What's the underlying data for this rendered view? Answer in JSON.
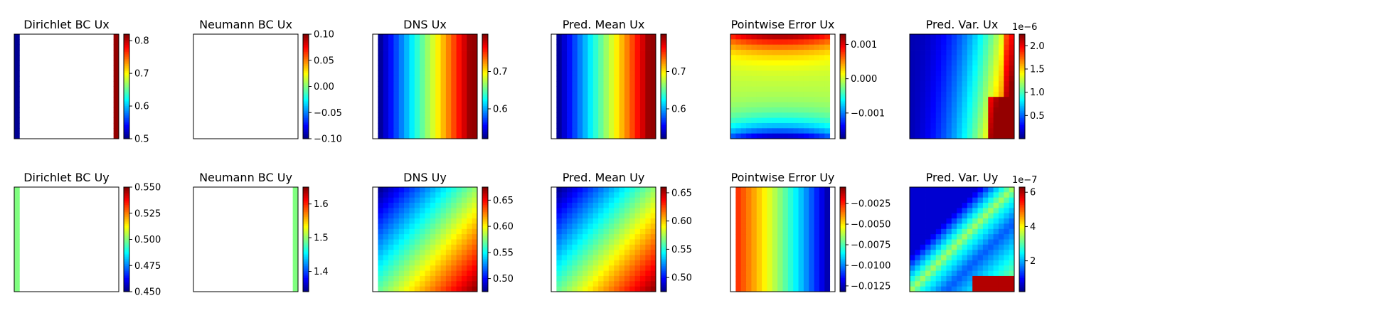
{
  "figure": {
    "rows": [
      [
        {
          "title": "Dirichlet BC Ux",
          "kind": "dirichlet_x",
          "ticks": [
            "0.5",
            "0.6",
            "0.7",
            "0.8"
          ],
          "tick_values": [
            0.5,
            0.6,
            0.7,
            0.8
          ],
          "cbar_range": [
            0.5,
            0.82
          ],
          "multiplier": ""
        },
        {
          "title": "Neumann BC Ux",
          "kind": "blank",
          "ticks": [
            "−0.10",
            "−0.05",
            "0.00",
            "0.05",
            "0.10"
          ],
          "tick_values": [
            -0.1,
            -0.05,
            0.0,
            0.05,
            0.1
          ],
          "cbar_range": [
            -0.1,
            0.1
          ],
          "multiplier": ""
        },
        {
          "title": "DNS Ux",
          "kind": "gradient_x",
          "ticks": [
            "0.6",
            "0.7"
          ],
          "tick_values": [
            0.6,
            0.7
          ],
          "cbar_range": [
            0.52,
            0.8
          ],
          "multiplier": ""
        },
        {
          "title": "Pred. Mean Ux",
          "kind": "gradient_x",
          "ticks": [
            "0.6",
            "0.7"
          ],
          "tick_values": [
            0.6,
            0.7
          ],
          "cbar_range": [
            0.52,
            0.8
          ],
          "multiplier": ""
        },
        {
          "title": "Pointwise Error Ux",
          "kind": "error_x",
          "ticks": [
            "0.001",
            "0.000",
            "−0.001"
          ],
          "tick_values": [
            0.001,
            0.0,
            -0.001
          ],
          "cbar_range": [
            -0.00175,
            0.0013
          ],
          "multiplier": ""
        },
        {
          "title": "Pred. Var. Ux",
          "kind": "variance_x",
          "ticks": [
            "0.5",
            "1.0",
            "1.5",
            "2.0"
          ],
          "tick_values": [
            0.5,
            1.0,
            1.5,
            2.0
          ],
          "cbar_range": [
            0.0,
            2.25
          ],
          "multiplier": "1e−6"
        }
      ],
      [
        {
          "title": "Dirichlet BC Uy",
          "kind": "dirichlet_y",
          "ticks": [
            "0.450",
            "0.475",
            "0.500",
            "0.525",
            "0.550"
          ],
          "tick_values": [
            0.45,
            0.475,
            0.5,
            0.525,
            0.55
          ],
          "cbar_range": [
            0.45,
            0.55
          ],
          "multiplier": ""
        },
        {
          "title": "Neumann BC Uy",
          "kind": "neumann_y",
          "ticks": [
            "1.4",
            "1.5",
            "1.6"
          ],
          "tick_values": [
            1.4,
            1.5,
            1.6
          ],
          "cbar_range": [
            1.34,
            1.65
          ],
          "multiplier": ""
        },
        {
          "title": "DNS Uy",
          "kind": "gradient_diag",
          "ticks": [
            "0.50",
            "0.55",
            "0.60",
            "0.65"
          ],
          "tick_values": [
            0.5,
            0.55,
            0.6,
            0.65
          ],
          "cbar_range": [
            0.475,
            0.675
          ],
          "multiplier": ""
        },
        {
          "title": "Pred. Mean Uy",
          "kind": "gradient_diag",
          "ticks": [
            "0.50",
            "0.55",
            "0.60",
            "0.65"
          ],
          "tick_values": [
            0.5,
            0.55,
            0.6,
            0.65
          ],
          "cbar_range": [
            0.475,
            0.66
          ],
          "multiplier": ""
        },
        {
          "title": "Pointwise Error Uy",
          "kind": "error_y",
          "ticks": [
            "−0.0025",
            "−0.0050",
            "−0.0075",
            "−0.0100",
            "−0.0125"
          ],
          "tick_values": [
            -0.0025,
            -0.005,
            -0.0075,
            -0.01,
            -0.0125
          ],
          "cbar_range": [
            -0.0132,
            -0.0005
          ],
          "multiplier": ""
        },
        {
          "title": "Pred. Var. Uy",
          "kind": "variance_y",
          "ticks": [
            "2",
            "4",
            "6"
          ],
          "tick_values": [
            2,
            4,
            6
          ],
          "cbar_range": [
            0.2,
            6.3
          ],
          "multiplier": "1e−7"
        }
      ]
    ]
  },
  "chart_data": {
    "type": "heatmap",
    "panels": [
      {
        "title": "Dirichlet BC Ux",
        "colorbar_ticks": [
          0.5,
          0.6,
          0.7,
          0.8
        ]
      },
      {
        "title": "Neumann BC Ux",
        "colorbar_ticks": [
          -0.1,
          -0.05,
          0.0,
          0.05,
          0.1
        ]
      },
      {
        "title": "DNS Ux",
        "colorbar_ticks": [
          0.6,
          0.7
        ]
      },
      {
        "title": "Pred. Mean Ux",
        "colorbar_ticks": [
          0.6,
          0.7
        ]
      },
      {
        "title": "Pointwise Error Ux",
        "colorbar_ticks": [
          0.001,
          0.0,
          -0.001
        ]
      },
      {
        "title": "Pred. Var. Ux",
        "colorbar_ticks": [
          0.5,
          1.0,
          1.5,
          2.0
        ],
        "colorbar_multiplier": "1e−6"
      },
      {
        "title": "Dirichlet BC Uy",
        "colorbar_ticks": [
          0.45,
          0.475,
          0.5,
          0.525,
          0.55
        ]
      },
      {
        "title": "Neumann BC Uy",
        "colorbar_ticks": [
          1.4,
          1.5,
          1.6
        ]
      },
      {
        "title": "DNS Uy",
        "colorbar_ticks": [
          0.5,
          0.55,
          0.6,
          0.65
        ]
      },
      {
        "title": "Pred. Mean Uy",
        "colorbar_ticks": [
          0.5,
          0.55,
          0.6,
          0.65
        ]
      },
      {
        "title": "Pointwise Error Uy",
        "colorbar_ticks": [
          -0.0025,
          -0.005,
          -0.0075,
          -0.01,
          -0.0125
        ]
      },
      {
        "title": "Pred. Var. Uy",
        "colorbar_ticks": [
          2,
          4,
          6
        ],
        "colorbar_multiplier": "1e−7"
      }
    ],
    "colormap": "jet",
    "grid": false
  }
}
